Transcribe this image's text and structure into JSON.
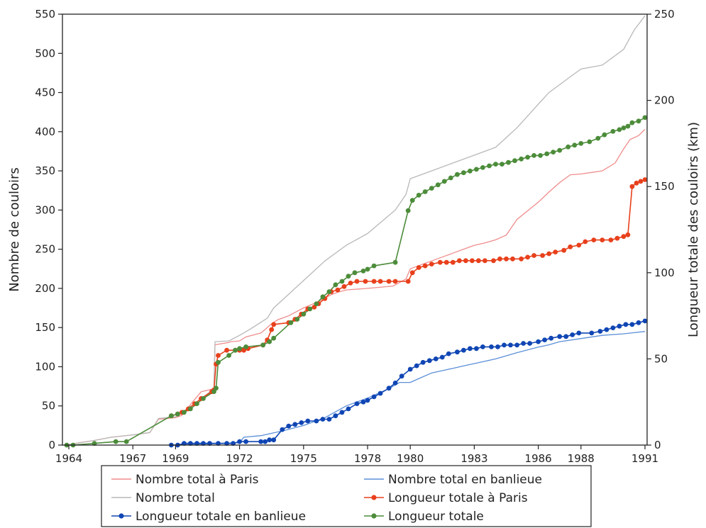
{
  "chart_data": {
    "type": "line",
    "title": "",
    "xlabel": "",
    "ylabel": "Nombre de couloirs",
    "y2label": "Longueur totale des couloirs (km)",
    "xlim": [
      1963.7,
      1991.1
    ],
    "ylim": [
      0,
      550
    ],
    "y2lim": [
      0,
      250
    ],
    "x_ticks": [
      1964,
      1967,
      1969,
      1972,
      1975,
      1978,
      1980,
      1983,
      1986,
      1988,
      1991
    ],
    "x_tick_labels": [
      "1964",
      "1967",
      "1969",
      "1972",
      "1975",
      "1978",
      "1980",
      "1983",
      "1986",
      "1988",
      "1991"
    ],
    "y_ticks": [
      0,
      50,
      100,
      150,
      200,
      250,
      300,
      350,
      400,
      450,
      500,
      550
    ],
    "y_tick_labels": [
      "0",
      "50",
      "100",
      "150",
      "200",
      "250",
      "300",
      "350",
      "400",
      "450",
      "500",
      "550"
    ],
    "y2_ticks": [
      0,
      50,
      100,
      150,
      200,
      250
    ],
    "y2_tick_labels": [
      "0",
      "50",
      "100",
      "150",
      "200",
      "250"
    ],
    "grid": false,
    "legend_position": "bottom",
    "series": [
      {
        "name": "Nombre total à Paris",
        "axis": "left",
        "color": "#f08c8c",
        "marker": false,
        "x": [
          1963.8,
          1964.5,
          1965.2,
          1966.0,
          1967.0,
          1967.8,
          1968.2,
          1969.0,
          1969.3,
          1969.8,
          1970.2,
          1970.5,
          1970.8,
          1970.85,
          1971.5,
          1971.6,
          1972.0,
          1972.3,
          1973.0,
          1973.3,
          1973.5,
          1973.8,
          1974.3,
          1975.0,
          1975.6,
          1976.3,
          1976.6,
          1977.0,
          1978.0,
          1979.2,
          1979.4,
          1979.8,
          1980.0,
          1980.5,
          1981.0,
          1981.5,
          1982.0,
          1982.5,
          1983.0,
          1983.5,
          1984.0,
          1984.5,
          1985.0,
          1986.0,
          1986.5,
          1987.0,
          1987.5,
          1988.0,
          1988.5,
          1989.0,
          1989.6,
          1990.0,
          1990.3,
          1990.7,
          1991.0
        ],
        "y": [
          0,
          3,
          6,
          10,
          13,
          16,
          33,
          35,
          38,
          55,
          68,
          70,
          72,
          128,
          131,
          132,
          133,
          138,
          143,
          150,
          155,
          160,
          165,
          175,
          182,
          192,
          195,
          198,
          200,
          203,
          206,
          212,
          225,
          230,
          235,
          240,
          245,
          250,
          255,
          258,
          262,
          268,
          288,
          310,
          323,
          335,
          345,
          346,
          348,
          350,
          360,
          378,
          390,
          395,
          403
        ]
      },
      {
        "name": "Nombre total en banlieue",
        "axis": "left",
        "color": "#5b8fd8",
        "marker": false,
        "x": [
          1969.5,
          1970.0,
          1971.0,
          1972.0,
          1972.2,
          1973.0,
          1973.5,
          1974.0,
          1975.0,
          1976.0,
          1977.0,
          1978.0,
          1979.0,
          1979.5,
          1980.0,
          1980.5,
          1981.0,
          1981.5,
          1982.0,
          1982.5,
          1983.0,
          1983.5,
          1984.0,
          1985.0,
          1986.0,
          1986.5,
          1987.0,
          1988.0,
          1989.0,
          1990.0,
          1991.0
        ],
        "y": [
          1,
          1,
          2,
          3,
          10,
          12,
          15,
          18,
          25,
          35,
          50,
          60,
          72,
          80,
          80,
          86,
          92,
          95,
          98,
          101,
          104,
          107,
          110,
          118,
          125,
          128,
          132,
          136,
          140,
          142,
          145
        ]
      },
      {
        "name": "Nombre total",
        "axis": "left",
        "color": "#b8b8b8",
        "marker": false,
        "x": [
          1963.8,
          1965.0,
          1966.0,
          1967.0,
          1967.8,
          1968.2,
          1969.0,
          1970.0,
          1970.8,
          1970.85,
          1971.5,
          1972.0,
          1972.5,
          1973.3,
          1973.6,
          1974.0,
          1975.0,
          1976.0,
          1977.0,
          1978.0,
          1979.3,
          1979.8,
          1980.0,
          1981.0,
          1982.0,
          1983.0,
          1984.0,
          1985.0,
          1985.5,
          1986.0,
          1986.5,
          1987.0,
          1987.5,
          1988.0,
          1989.0,
          1990.0,
          1990.5,
          1991.0
        ],
        "y": [
          0,
          5,
          10,
          13,
          16,
          34,
          36,
          55,
          72,
          132,
          133,
          140,
          148,
          162,
          175,
          185,
          210,
          235,
          255,
          270,
          300,
          320,
          340,
          350,
          360,
          370,
          380,
          405,
          420,
          435,
          450,
          460,
          470,
          480,
          485,
          505,
          530,
          548
        ]
      },
      {
        "name": "Longueur totale à Paris",
        "axis": "right",
        "color": "#e8401c",
        "marker": true,
        "x": [
          1968.8,
          1969.1,
          1969.3,
          1969.6,
          1969.9,
          1970.2,
          1970.7,
          1970.8,
          1970.9,
          1971.0,
          1971.4,
          1971.8,
          1972.0,
          1972.2,
          1972.4,
          1973.1,
          1973.3,
          1973.5,
          1973.6,
          1974.3,
          1974.6,
          1974.9,
          1975.2,
          1975.5,
          1975.7,
          1976.0,
          1976.3,
          1976.6,
          1976.9,
          1977.2,
          1977.5,
          1977.9,
          1978.3,
          1978.6,
          1979.0,
          1979.3,
          1979.9,
          1980.1,
          1980.4,
          1980.7,
          1981.0,
          1981.4,
          1981.7,
          1982.0,
          1982.3,
          1982.6,
          1982.9,
          1983.2,
          1983.5,
          1983.9,
          1984.2,
          1984.5,
          1984.8,
          1985.2,
          1985.5,
          1985.8,
          1986.2,
          1986.5,
          1986.8,
          1987.2,
          1987.5,
          1987.9,
          1988.2,
          1988.6,
          1989.0,
          1989.4,
          1989.7,
          1990.0,
          1990.2,
          1990.4,
          1990.6,
          1990.8,
          1991.0
        ],
        "y": [
          17,
          18,
          19,
          21,
          24,
          27,
          31,
          32,
          47,
          52,
          55,
          55,
          55,
          55,
          56,
          58,
          61,
          67,
          70,
          71,
          73,
          76,
          79,
          80,
          82,
          85,
          89,
          90,
          92,
          94,
          95,
          95,
          95,
          95,
          95,
          95,
          95,
          100,
          103,
          104,
          105,
          106,
          106,
          106,
          107,
          107,
          107,
          107,
          107,
          107,
          108,
          108,
          108,
          108,
          109,
          110,
          110,
          111,
          112,
          113,
          115,
          116,
          118,
          119,
          119,
          119,
          120,
          121,
          122,
          150,
          152,
          153,
          154
        ]
      },
      {
        "name": "Longueur totale en banlieue",
        "axis": "right",
        "color": "#1046b4",
        "marker": true,
        "x": [
          1968.8,
          1969.1,
          1969.4,
          1969.7,
          1970.0,
          1970.3,
          1970.6,
          1971.0,
          1971.4,
          1971.7,
          1972.0,
          1972.3,
          1973.0,
          1973.2,
          1973.4,
          1973.6,
          1974.0,
          1974.3,
          1974.6,
          1974.9,
          1975.2,
          1975.6,
          1975.9,
          1976.2,
          1976.5,
          1976.8,
          1977.1,
          1977.5,
          1977.8,
          1978.0,
          1978.3,
          1978.6,
          1979.0,
          1979.3,
          1979.6,
          1980.0,
          1980.3,
          1980.6,
          1980.9,
          1981.2,
          1981.5,
          1981.8,
          1982.2,
          1982.5,
          1982.8,
          1983.1,
          1983.4,
          1983.8,
          1984.1,
          1984.4,
          1984.7,
          1985.0,
          1985.3,
          1985.6,
          1986.0,
          1986.3,
          1986.6,
          1987.0,
          1987.3,
          1987.6,
          1987.9,
          1988.5,
          1988.9,
          1989.2,
          1989.5,
          1989.8,
          1990.1,
          1990.4,
          1990.7,
          1991.0
        ],
        "y": [
          0,
          0,
          1,
          1,
          1,
          1,
          1,
          1,
          1,
          1,
          2,
          2,
          2,
          2,
          3,
          3,
          9,
          11,
          12,
          13,
          14,
          14,
          15,
          15,
          17,
          19,
          21,
          24,
          25,
          26,
          28,
          30,
          33,
          36,
          40,
          44,
          46,
          48,
          49,
          50,
          51,
          53,
          54,
          55,
          56,
          56,
          57,
          57,
          57,
          58,
          58,
          58,
          59,
          59,
          60,
          61,
          62,
          63,
          63,
          64,
          65,
          65,
          66,
          67,
          68,
          69,
          70,
          70,
          71,
          72
        ]
      },
      {
        "name": "Longueur totale",
        "axis": "right",
        "color": "#4c8c3a",
        "marker": true,
        "x": [
          1963.9,
          1964.2,
          1965.2,
          1966.2,
          1966.7,
          1968.8,
          1969.1,
          1969.4,
          1969.7,
          1970.0,
          1970.3,
          1970.8,
          1970.9,
          1971.0,
          1971.5,
          1971.8,
          1972.0,
          1972.3,
          1973.1,
          1973.4,
          1973.6,
          1974.4,
          1974.7,
          1975.0,
          1975.3,
          1975.6,
          1975.9,
          1976.2,
          1976.5,
          1976.8,
          1977.1,
          1977.4,
          1977.8,
          1978.0,
          1978.3,
          1979.3,
          1979.9,
          1980.1,
          1980.4,
          1980.7,
          1981.0,
          1981.3,
          1981.6,
          1981.9,
          1982.2,
          1982.5,
          1982.8,
          1983.1,
          1983.4,
          1983.7,
          1984.0,
          1984.3,
          1984.6,
          1984.9,
          1985.2,
          1985.5,
          1985.8,
          1986.1,
          1986.4,
          1986.7,
          1987.0,
          1987.4,
          1987.7,
          1988.0,
          1988.4,
          1988.8,
          1989.1,
          1989.5,
          1989.8,
          1990.0,
          1990.2,
          1990.4,
          1990.7,
          1991.0
        ],
        "y": [
          0,
          0,
          1,
          2,
          2,
          17,
          18,
          19,
          21,
          24,
          27,
          31,
          33,
          48,
          52,
          55,
          56,
          57,
          58,
          60,
          62,
          71,
          73,
          76,
          79,
          82,
          86,
          89,
          93,
          95,
          98,
          100,
          101,
          102,
          104,
          106,
          136,
          142,
          145,
          147,
          149,
          151,
          153,
          155,
          157,
          158,
          159,
          160,
          161,
          162,
          163,
          163,
          164,
          165,
          166,
          167,
          168,
          168,
          169,
          170,
          171,
          173,
          174,
          175,
          176,
          178,
          180,
          182,
          183,
          184,
          185,
          187,
          188,
          190
        ]
      }
    ],
    "legend": {
      "rows": [
        [
          "Nombre total à Paris",
          "Nombre total en banlieue"
        ],
        [
          "Nombre total",
          "Longueur totale à Paris"
        ],
        [
          "Longueur totale en banlieue",
          "Longueur totale"
        ]
      ]
    }
  }
}
